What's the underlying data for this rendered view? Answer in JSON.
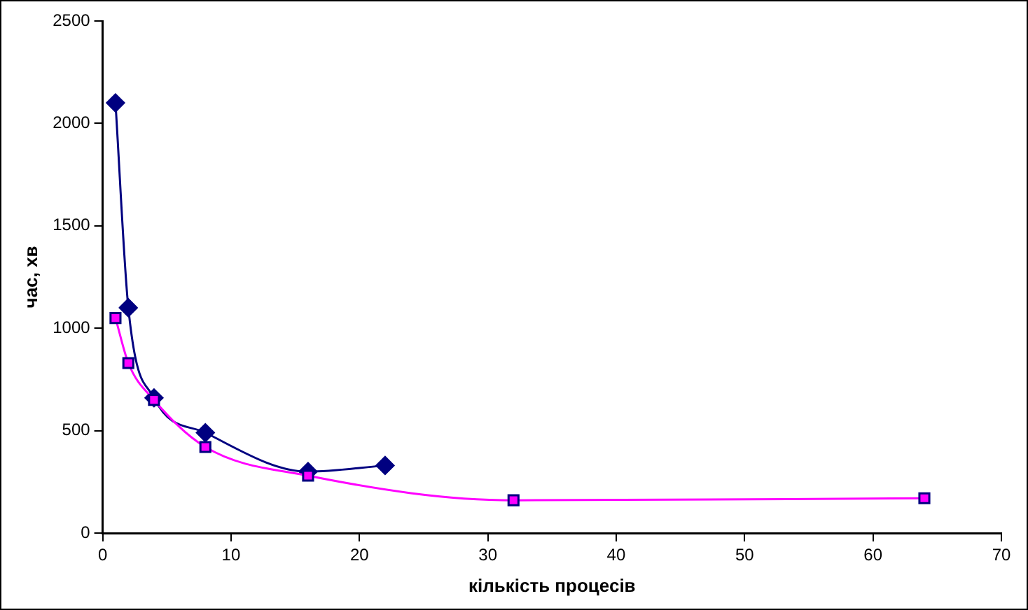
{
  "chart_data": {
    "type": "line",
    "xlabel": "кількість процесів",
    "ylabel": "час, хв",
    "xlim": [
      0,
      70
    ],
    "xticks": [
      0,
      10,
      20,
      30,
      40,
      50,
      60,
      70
    ],
    "ylim": [
      0,
      2500
    ],
    "yticks": [
      0,
      500,
      1000,
      1500,
      2000,
      2500
    ],
    "grid": false,
    "legend": false,
    "series": [
      {
        "color": "#000080",
        "marker": "diamond",
        "x": [
          1,
          2,
          4,
          8,
          16,
          22
        ],
        "values": [
          2100,
          1100,
          660,
          490,
          300,
          330
        ]
      },
      {
        "color": "#ff00ff",
        "marker": "square",
        "x": [
          1,
          2,
          4,
          8,
          16,
          32,
          64
        ],
        "values": [
          1050,
          830,
          650,
          420,
          280,
          160,
          170
        ]
      }
    ]
  }
}
